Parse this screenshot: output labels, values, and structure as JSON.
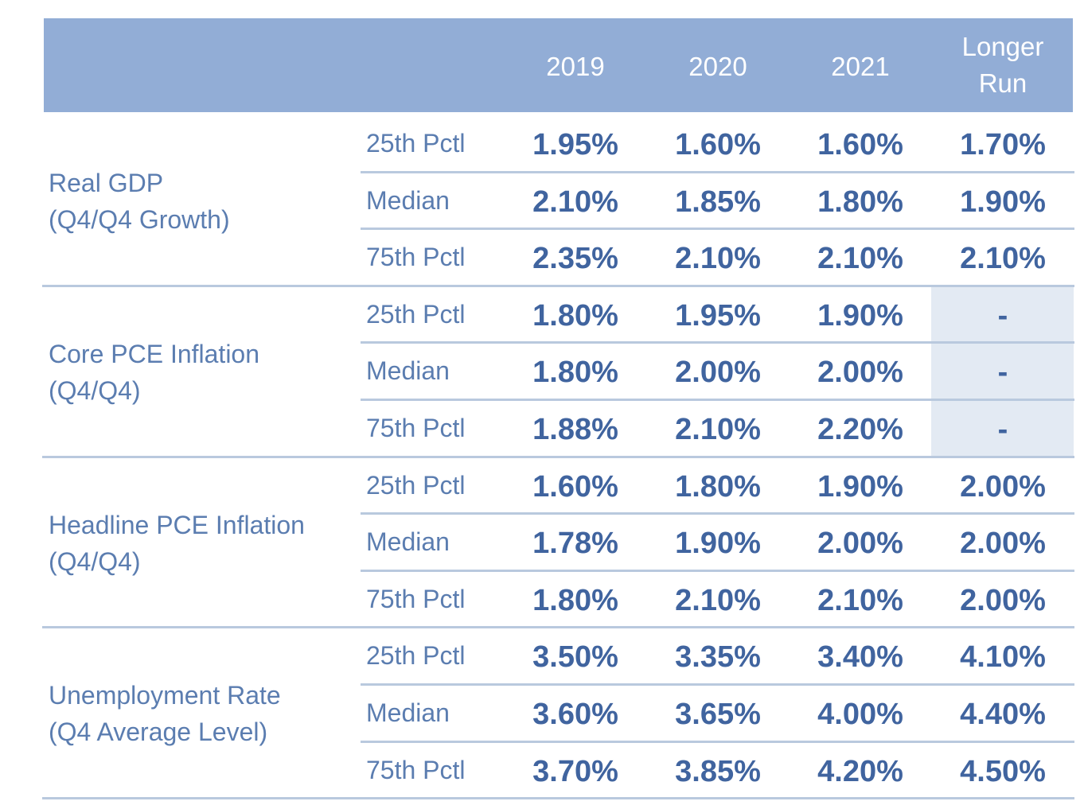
{
  "chart_data": {
    "type": "table",
    "columns": [
      "2019",
      "2020",
      "2021",
      "Longer Run"
    ],
    "header_lines": {
      "c0": "2019",
      "c1": "2020",
      "c2": "2021",
      "c3_line1": "Longer",
      "c3_line2": "Run"
    },
    "groups": [
      {
        "title_line1": "Real GDP",
        "title_line2": "(Q4/Q4 Growth)",
        "rows": [
          {
            "label": "25th Pctl",
            "values": [
              "1.95%",
              "1.60%",
              "1.60%",
              "1.70%"
            ]
          },
          {
            "label": "Median",
            "values": [
              "2.10%",
              "1.85%",
              "1.80%",
              "1.90%"
            ]
          },
          {
            "label": "75th Pctl",
            "values": [
              "2.35%",
              "2.10%",
              "2.10%",
              "2.10%"
            ]
          }
        ]
      },
      {
        "title_line1": "Core PCE Inflation",
        "title_line2": "(Q4/Q4)",
        "rows": [
          {
            "label": "25th Pctl",
            "values": [
              "1.80%",
              "1.95%",
              "1.90%",
              "-"
            ]
          },
          {
            "label": "Median",
            "values": [
              "1.80%",
              "2.00%",
              "2.00%",
              "-"
            ]
          },
          {
            "label": "75th Pctl",
            "values": [
              "1.88%",
              "2.10%",
              "2.20%",
              "-"
            ]
          }
        ]
      },
      {
        "title_line1": "Headline PCE Inflation",
        "title_line2": "(Q4/Q4)",
        "rows": [
          {
            "label": "25th Pctl",
            "values": [
              "1.60%",
              "1.80%",
              "1.90%",
              "2.00%"
            ]
          },
          {
            "label": "Median",
            "values": [
              "1.78%",
              "1.90%",
              "2.00%",
              "2.00%"
            ]
          },
          {
            "label": "75th Pctl",
            "values": [
              "1.80%",
              "2.10%",
              "2.10%",
              "2.00%"
            ]
          }
        ]
      },
      {
        "title_line1": "Unemployment Rate",
        "title_line2": "(Q4 Average Level)",
        "rows": [
          {
            "label": "25th Pctl",
            "values": [
              "3.50%",
              "3.35%",
              "3.40%",
              "4.10%"
            ]
          },
          {
            "label": "Median",
            "values": [
              "3.60%",
              "3.65%",
              "4.00%",
              "4.40%"
            ]
          },
          {
            "label": "75th Pctl",
            "values": [
              "3.70%",
              "3.85%",
              "4.20%",
              "4.50%"
            ]
          }
        ]
      }
    ],
    "colors": {
      "header_bg": "#92add6",
      "header_text": "#ffffff",
      "label_text": "#5b7db0",
      "value_text": "#40649f",
      "rule": "#b9c9de",
      "empty_cell_bg": "#e3eaf3"
    }
  }
}
